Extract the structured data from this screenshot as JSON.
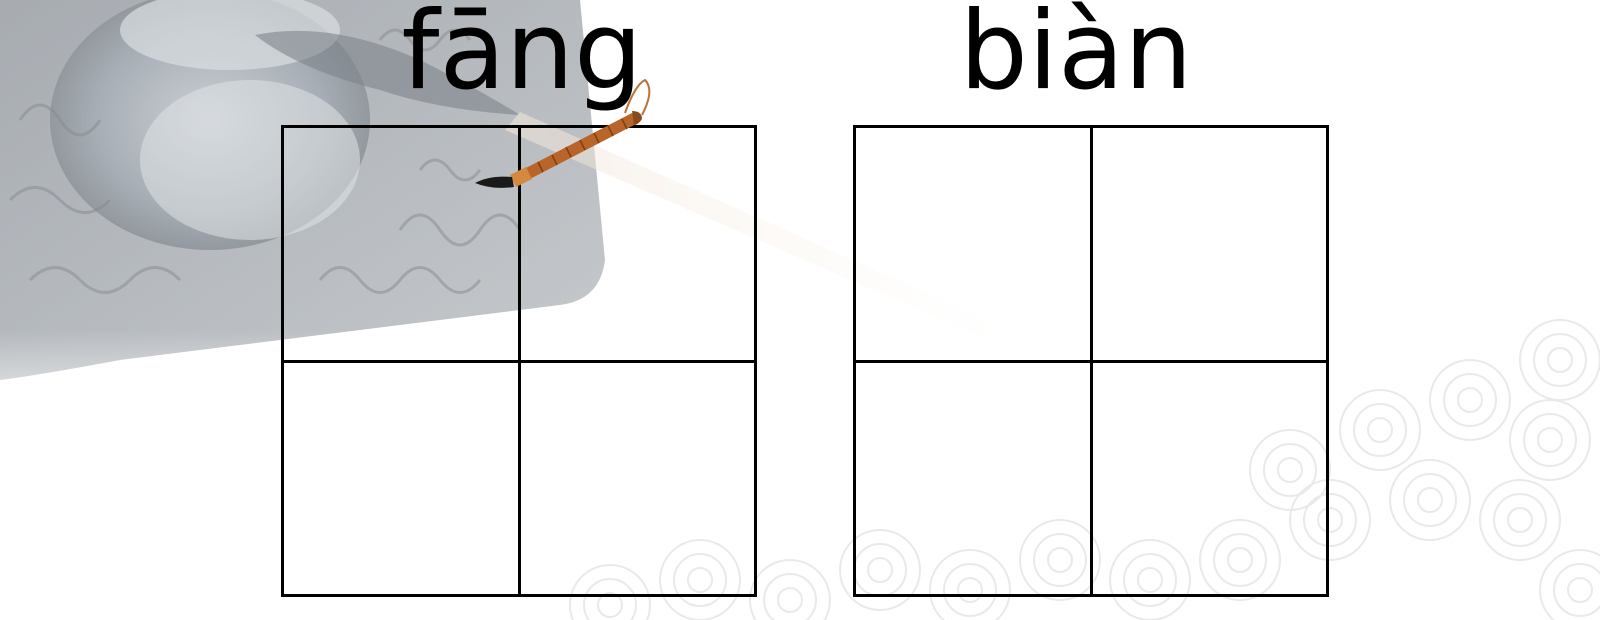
{
  "pinyin": [
    "fāng",
    "biàn"
  ],
  "decor": {
    "background": "inkstone-and-cloud-swirl-illustration",
    "brush_icon": "calligraphy-brush-icon"
  },
  "colors": {
    "grid_line": "#000000",
    "text": "#000000",
    "background": "#ffffff"
  }
}
